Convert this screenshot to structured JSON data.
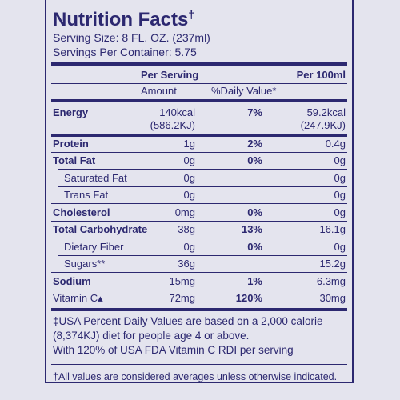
{
  "title": "Nutrition Facts",
  "title_mark": "†",
  "serving_size": "Serving Size: 8 FL. OZ. (237ml)",
  "servings_per_container": "Servings Per Container: 5.75",
  "header": {
    "per_serving": "Per Serving",
    "per_100ml": "Per 100ml",
    "amount": "Amount",
    "daily_value": "%Daily Value*"
  },
  "rows": [
    {
      "name": "Energy",
      "style": "bold",
      "amount": [
        "140kcal",
        "(586.2KJ)"
      ],
      "daily_value": "7%",
      "per_100ml": [
        "59.2kcal",
        "(247.9KJ)"
      ]
    },
    {
      "name": "Protein",
      "style": "bold",
      "amount": [
        "1g"
      ],
      "daily_value": "2%",
      "per_100ml": [
        "0.4g"
      ]
    },
    {
      "name": "Total Fat",
      "style": "bold",
      "amount": [
        "0g"
      ],
      "daily_value": "0%",
      "per_100ml": [
        "0g"
      ]
    },
    {
      "name": "Saturated Fat",
      "style": "sub",
      "amount": [
        "0g"
      ],
      "daily_value": null,
      "per_100ml": [
        "0g"
      ]
    },
    {
      "name": "Trans Fat",
      "style": "sub",
      "amount": [
        "0g"
      ],
      "daily_value": null,
      "per_100ml": [
        "0g"
      ]
    },
    {
      "name": "Cholesterol",
      "style": "bold",
      "amount": [
        "0mg"
      ],
      "daily_value": "0%",
      "per_100ml": [
        "0g"
      ]
    },
    {
      "name": "Total Carbohydrate",
      "style": "bold",
      "amount": [
        "38g"
      ],
      "daily_value": "13%",
      "per_100ml": [
        "16.1g"
      ]
    },
    {
      "name": "Dietary Fiber",
      "style": "sub",
      "amount": [
        "0g"
      ],
      "daily_value": "0%",
      "per_100ml": [
        "0g"
      ]
    },
    {
      "name": "Sugars**",
      "style": "sub",
      "amount": [
        "36g"
      ],
      "daily_value": null,
      "per_100ml": [
        "15.2g"
      ]
    },
    {
      "name": "Sodium",
      "style": "bold",
      "amount": [
        "15mg"
      ],
      "daily_value": "1%",
      "per_100ml": [
        "6.3mg"
      ]
    },
    {
      "name": "Vitamin C▴",
      "style": "plain",
      "amount": [
        "72mg"
      ],
      "daily_value": "120%",
      "per_100ml": [
        "30mg"
      ]
    }
  ],
  "footnotes": [
    "‡USA Percent Daily Values are based on a 2,000 calorie",
    "(8,374KJ) diet for people age 4 or above.",
    "With 120% of USA FDA Vitamin C RDI per serving"
  ],
  "disclaimer": "†All values are considered averages unless otherwise indicated."
}
